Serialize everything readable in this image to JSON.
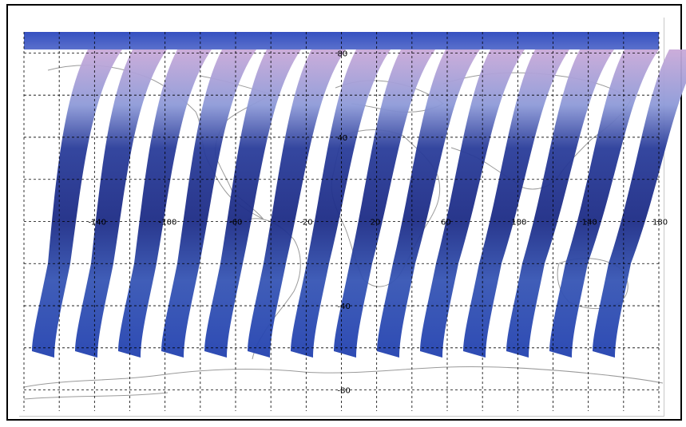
{
  "map": {
    "projection": "equirectangular",
    "lon_labels": [
      "-140",
      "-100",
      "-60",
      "-20",
      "20",
      "60",
      "100",
      "140",
      "180"
    ],
    "lat_labels": [
      "80",
      "40",
      "-40",
      "-80"
    ],
    "grid": true,
    "grid_style": "dashed",
    "coastline_color": "#9a9a9a",
    "swath_count": 14,
    "swath_colors": [
      "#1a2a8a",
      "#3b5bb8",
      "#8e9ad8",
      "#c7a6d6",
      "#3f6f6a",
      "#b7b23a"
    ]
  }
}
